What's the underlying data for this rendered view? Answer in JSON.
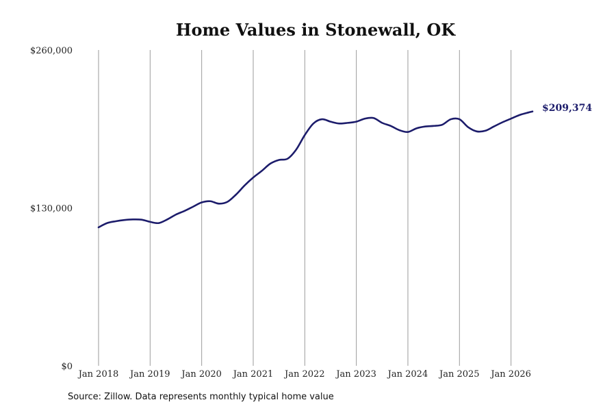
{
  "colors": {
    "line": "#1c1c6b",
    "grid": "#9a9a9a",
    "text": "#222222"
  },
  "source_text": "Source: Zillow. Data represents monthly typical home value",
  "chart_data": {
    "type": "line",
    "title": "Home Values in Stonewall, OK",
    "xlabel": "",
    "ylabel": "",
    "ylim": [
      0,
      260000
    ],
    "xlim": [
      "2018-01",
      "2026-06"
    ],
    "yticks": [
      {
        "value": 0,
        "label": "$0"
      },
      {
        "value": 130000,
        "label": "$130,000"
      },
      {
        "value": 260000,
        "label": "$260,000"
      }
    ],
    "xticks": [
      {
        "value": "2018-01",
        "label": "Jan 2018"
      },
      {
        "value": "2019-01",
        "label": "Jan 2019"
      },
      {
        "value": "2020-01",
        "label": "Jan 2020"
      },
      {
        "value": "2021-01",
        "label": "Jan 2021"
      },
      {
        "value": "2022-01",
        "label": "Jan 2022"
      },
      {
        "value": "2023-01",
        "label": "Jan 2023"
      },
      {
        "value": "2024-01",
        "label": "Jan 2024"
      },
      {
        "value": "2025-01",
        "label": "Jan 2025"
      },
      {
        "value": "2026-01",
        "label": "Jan 2026"
      }
    ],
    "grid": {
      "vertical": true,
      "horizontal": false
    },
    "end_label": "$209,374",
    "series": [
      {
        "x": [
          "2018-01",
          "2018-03",
          "2018-05",
          "2018-07",
          "2018-09",
          "2018-11",
          "2019-01",
          "2019-03",
          "2019-05",
          "2019-07",
          "2019-09",
          "2019-11",
          "2020-01",
          "2020-03",
          "2020-05",
          "2020-07",
          "2020-09",
          "2020-11",
          "2021-01",
          "2021-03",
          "2021-05",
          "2021-07",
          "2021-09",
          "2021-11",
          "2022-01",
          "2022-03",
          "2022-05",
          "2022-07",
          "2022-09",
          "2022-11",
          "2023-01",
          "2023-03",
          "2023-05",
          "2023-07",
          "2023-09",
          "2023-11",
          "2024-01",
          "2024-03",
          "2024-05",
          "2024-07",
          "2024-09",
          "2024-11",
          "2025-01",
          "2025-03",
          "2025-05",
          "2025-07",
          "2025-09",
          "2025-11",
          "2026-01",
          "2026-03",
          "2026-05",
          "2026-06"
        ],
        "values": [
          114000,
          117500,
          119000,
          120000,
          120500,
          120300,
          118500,
          117500,
          120500,
          124500,
          127500,
          131000,
          134500,
          135500,
          133500,
          135000,
          141000,
          148500,
          155000,
          160500,
          166500,
          169500,
          170500,
          178000,
          190000,
          199500,
          203000,
          201000,
          199500,
          200000,
          201000,
          203500,
          204000,
          200000,
          197500,
          194000,
          192500,
          195500,
          197000,
          197500,
          198500,
          203000,
          203000,
          196500,
          193000,
          193500,
          197000,
          200500,
          203500,
          206500,
          208500,
          209374
        ]
      }
    ]
  }
}
